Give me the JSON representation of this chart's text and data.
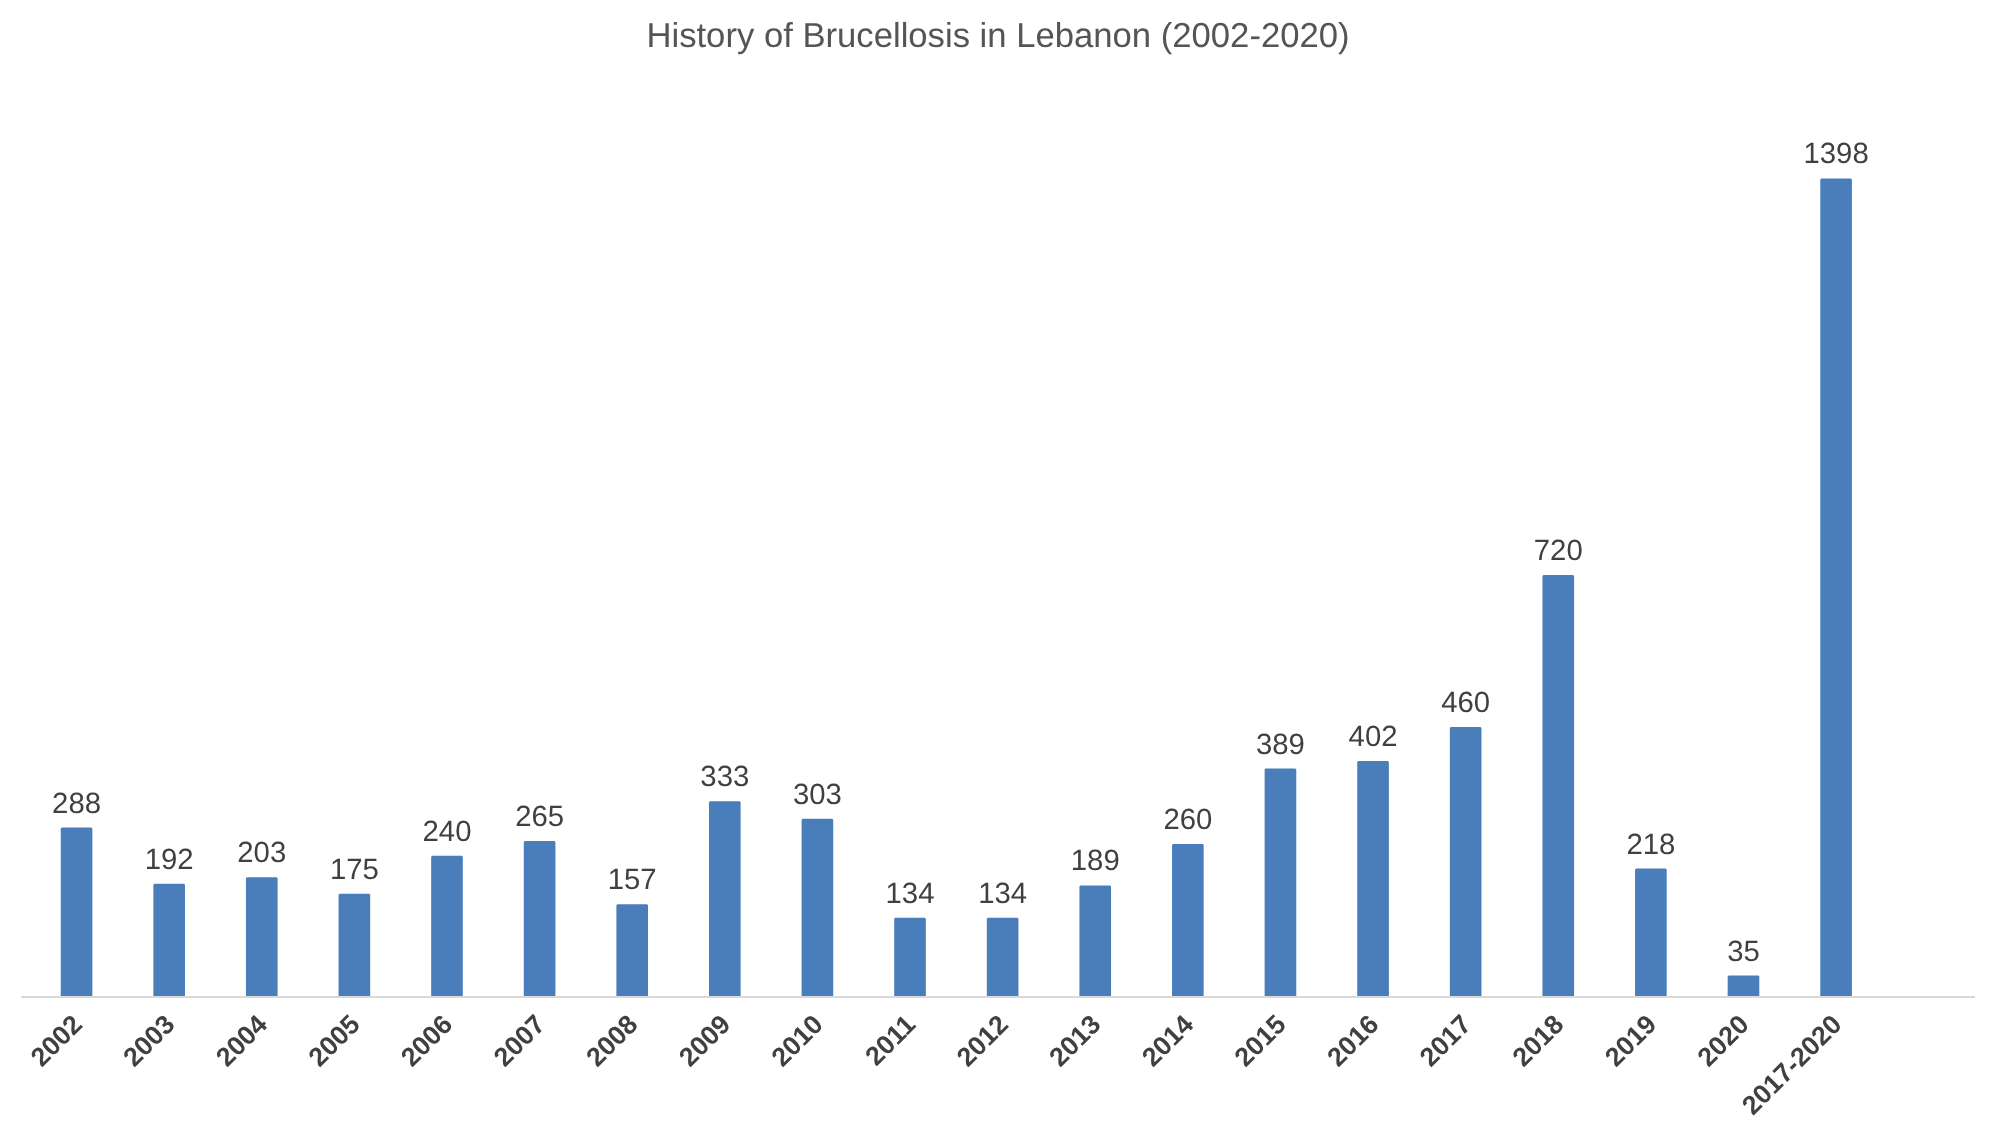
{
  "chart_data": {
    "type": "bar",
    "title": "History of Brucellosis in Lebanon (2002-2020)",
    "categories": [
      "2002",
      "2003",
      "2004",
      "2005",
      "2006",
      "2007",
      "2008",
      "2009",
      "2010",
      "2011",
      "2012",
      "2013",
      "2014",
      "2015",
      "2016",
      "2017",
      "2018",
      "2019",
      "2020",
      "2017-2020"
    ],
    "values": [
      288,
      192,
      203,
      175,
      240,
      265,
      157,
      333,
      303,
      134,
      134,
      189,
      260,
      389,
      402,
      460,
      720,
      218,
      35,
      1398
    ],
    "color": "#4a7ebb",
    "data_labels": true,
    "grid": false
  }
}
